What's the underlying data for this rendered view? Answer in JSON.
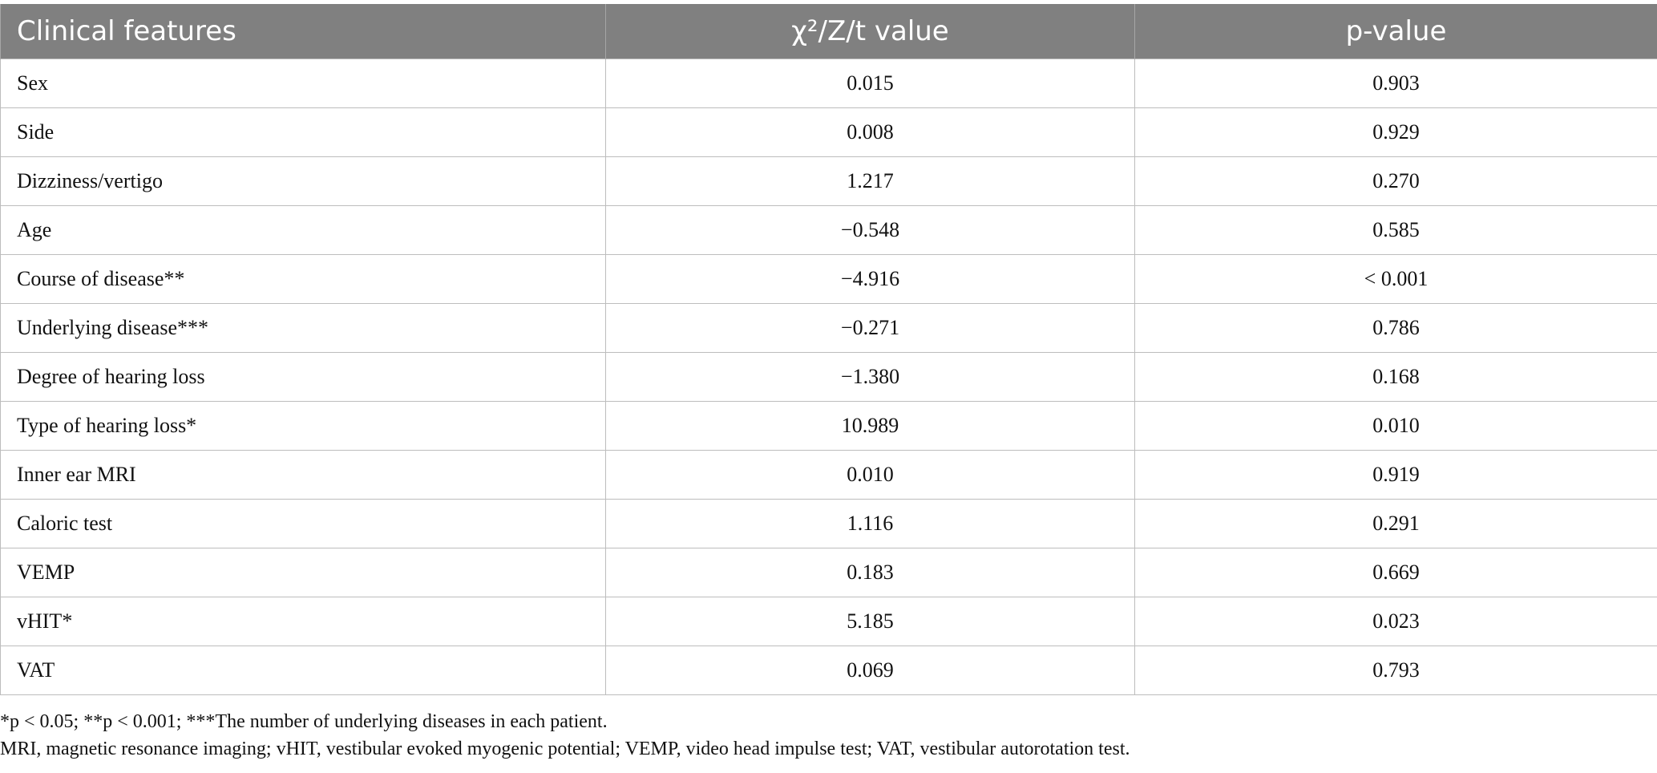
{
  "table": {
    "headers": {
      "col1": "Clinical features",
      "col2": "χ²/Z/t value",
      "col3": "p-value"
    },
    "rows": [
      {
        "feature": "Sex",
        "stat": "0.015",
        "p": "0.903"
      },
      {
        "feature": "Side",
        "stat": "0.008",
        "p": "0.929"
      },
      {
        "feature": "Dizziness/vertigo",
        "stat": "1.217",
        "p": "0.270"
      },
      {
        "feature": "Age",
        "stat": "−0.548",
        "p": "0.585"
      },
      {
        "feature": "Course of disease**",
        "stat": "−4.916",
        "p": "< 0.001"
      },
      {
        "feature": "Underlying disease***",
        "stat": "−0.271",
        "p": "0.786"
      },
      {
        "feature": "Degree of hearing loss",
        "stat": "−1.380",
        "p": "0.168"
      },
      {
        "feature": "Type of hearing loss*",
        "stat": "10.989",
        "p": "0.010"
      },
      {
        "feature": "Inner ear MRI",
        "stat": "0.010",
        "p": "0.919"
      },
      {
        "feature": "Caloric test",
        "stat": "1.116",
        "p": "0.291"
      },
      {
        "feature": "VEMP",
        "stat": "0.183",
        "p": "0.669"
      },
      {
        "feature": "vHIT*",
        "stat": "5.185",
        "p": "0.023"
      },
      {
        "feature": "VAT",
        "stat": "0.069",
        "p": "0.793"
      }
    ]
  },
  "footnotes": {
    "line1": "*p < 0.05; **p < 0.001; ***The number of underlying diseases in each patient.",
    "line2": "MRI, magnetic resonance imaging; vHIT, vestibular evoked myogenic potential; VEMP, video head impulse test; VAT, vestibular autorotation test."
  }
}
